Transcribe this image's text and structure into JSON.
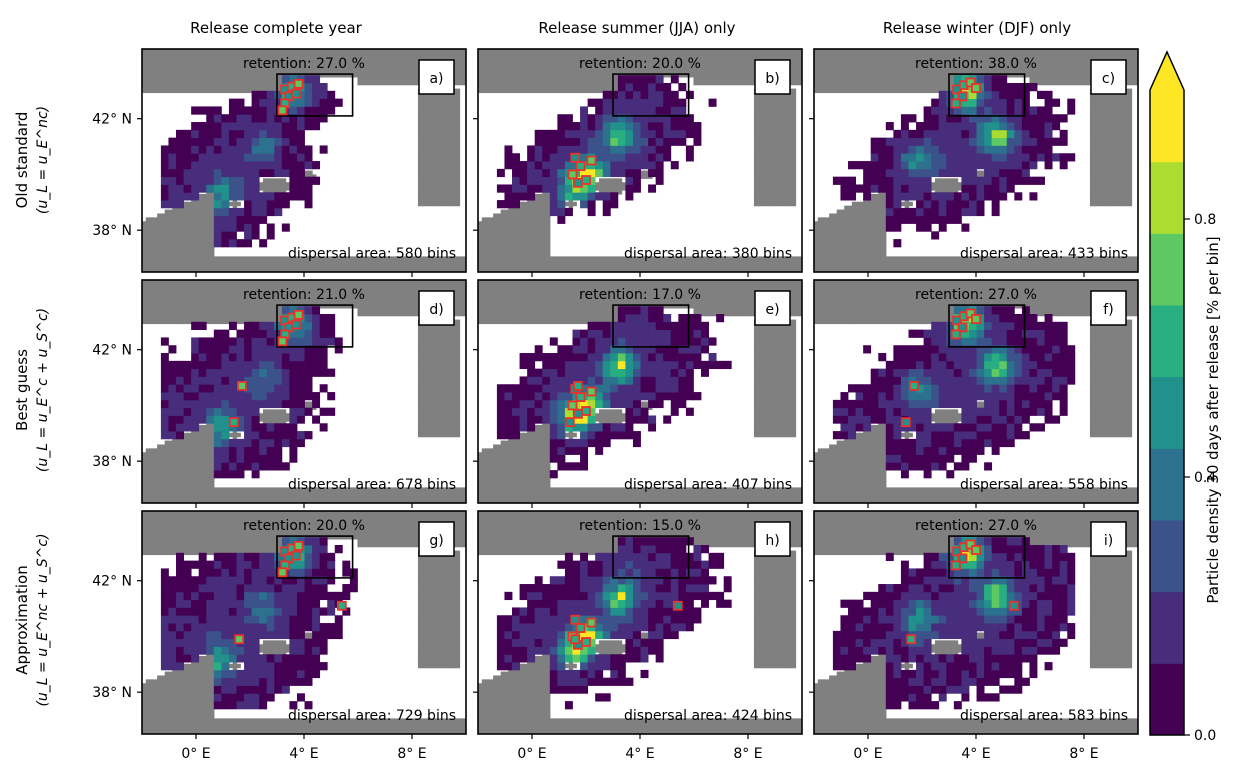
{
  "chart_data": {
    "type": "heatmap",
    "columns": [
      {
        "title": "Release complete year"
      },
      {
        "title": "Release summer (JJA) only"
      },
      {
        "title": "Release winter (DJF) only"
      }
    ],
    "rows": [
      {
        "title": "Old standard",
        "formula": "(u_L = u_E^nc)"
      },
      {
        "title": "Best guess",
        "formula": "(u_L = u_E^c + u_S^c)"
      },
      {
        "title": "Approximation",
        "formula": "(u_L = u_E^nc + u_S^c)"
      }
    ],
    "xticks": [
      "0° E",
      "4° E",
      "8° E"
    ],
    "xtick_values": [
      0,
      4,
      8
    ],
    "yticks": [
      "42° N",
      "38° N"
    ],
    "ytick_values": [
      42,
      38
    ],
    "xlim": [
      -2,
      10
    ],
    "ylim": [
      36.5,
      44.5
    ],
    "retention_box": {
      "lon": [
        3,
        5.8
      ],
      "lat": [
        42.1,
        43.6
      ]
    },
    "panels": [
      {
        "label": "a)",
        "retention": "retention: 27.0 %",
        "dispersal": "dispersal area: 580 bins"
      },
      {
        "label": "b)",
        "retention": "retention: 20.0 %",
        "dispersal": "dispersal area: 380 bins"
      },
      {
        "label": "c)",
        "retention": "retention: 38.0 %",
        "dispersal": "dispersal area: 433 bins"
      },
      {
        "label": "d)",
        "retention": "retention: 21.0 %",
        "dispersal": "dispersal area: 678 bins"
      },
      {
        "label": "e)",
        "retention": "retention: 17.0 %",
        "dispersal": "dispersal area: 407 bins"
      },
      {
        "label": "f)",
        "retention": "retention: 27.0 %",
        "dispersal": "dispersal area: 558 bins"
      },
      {
        "label": "g)",
        "retention": "retention: 20.0 %",
        "dispersal": "dispersal area: 729 bins"
      },
      {
        "label": "h)",
        "retention": "retention: 15.0 %",
        "dispersal": "dispersal area: 424 bins"
      },
      {
        "label": "i)",
        "retention": "retention: 27.0 %",
        "dispersal": "dispersal area: 583 bins"
      }
    ],
    "colorbar": {
      "label": "Particle density 30 days after release [% per bin]",
      "ticks": [
        "0.0",
        "0.4",
        "0.8"
      ],
      "tick_values": [
        0,
        0.4,
        0.8
      ],
      "range": [
        0,
        1
      ],
      "extend": "max",
      "colors": [
        "#440154",
        "#472d7b",
        "#3b528b",
        "#2c728e",
        "#21918c",
        "#28ae80",
        "#5ec962",
        "#addc30",
        "#fde725"
      ]
    },
    "land_color": "#808080",
    "marker_color": "#e8322b"
  }
}
